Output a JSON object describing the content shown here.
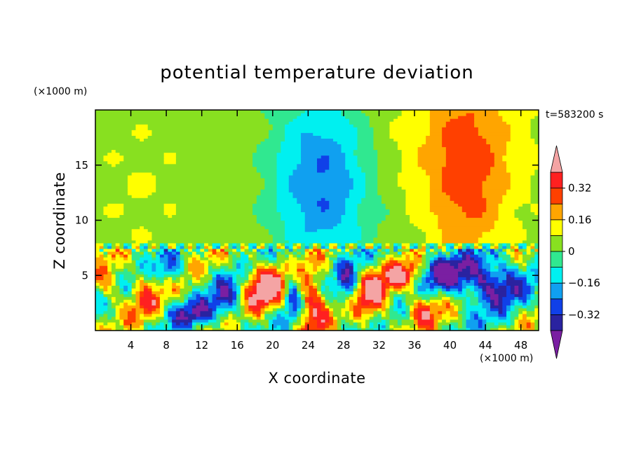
{
  "chart_data": {
    "type": "heatmap",
    "title": "potential temperature deviation",
    "xlabel": "X coordinate",
    "ylabel": "Z coordinate",
    "x_unit": "(×1000 m)",
    "y_unit": "(×1000 m)",
    "time_label": "t=583200 s",
    "xlim": [
      0,
      50
    ],
    "ylim": [
      0,
      20
    ],
    "x_ticks": [
      4,
      8,
      12,
      16,
      20,
      24,
      28,
      32,
      36,
      40,
      44,
      48
    ],
    "y_ticks": [
      5,
      10,
      15
    ],
    "colorbar": {
      "levels": [
        -0.4,
        -0.32,
        -0.24,
        -0.16,
        -0.08,
        0,
        0.08,
        0.16,
        0.24,
        0.32,
        0.4
      ],
      "colors": [
        "#7a1fa2",
        "#2a23a0",
        "#1040e8",
        "#10a0f0",
        "#00f0f0",
        "#30e890",
        "#88e020",
        "#ffff00",
        "#ffa500",
        "#ff4000",
        "#ff2020",
        "#f4a4a4"
      ],
      "tick_labels": [
        "0.32",
        "0.16",
        "0",
        "−0.16",
        "−0.32"
      ],
      "tick_values": [
        0.32,
        0.16,
        0,
        -0.16,
        -0.32
      ]
    },
    "upper_field": {
      "description_values": "upper layer (z 7.7–20 km): background ~0.05, cold tongue centered x≈25 (min ~−0.26), warm column centered x≈42 (max ~+0.23)",
      "background": 0.05,
      "features": [
        {
          "x": 25.5,
          "z": 13.5,
          "amplitude": -0.3,
          "sx": 5.5,
          "sz": 8.0
        },
        {
          "x": 42,
          "z": 14,
          "amplitude": 0.2,
          "sx": 4.5,
          "sz": 9.0
        },
        {
          "x": 40,
          "z": 17,
          "amplitude": 0.07,
          "sx": 9.0,
          "sz": 6.0
        },
        {
          "x": 5,
          "z": 13,
          "amplitude": 0.03,
          "sx": 4.0,
          "sz": 6.0
        }
      ]
    },
    "lower_field": {
      "description_values": "lower layer (z 0–7.7 km): strong wave-like perturbations, amplitude up to about ±0.4",
      "amplitude_range": [
        -0.42,
        0.42
      ],
      "features": [
        {
          "x": 19,
          "z": 4.0,
          "amplitude": 0.45,
          "sx": 2.6,
          "sz": 2.2
        },
        {
          "x": 24.5,
          "z": 2.5,
          "amplitude": 0.42,
          "sx": 1.6,
          "sz": 2.8
        },
        {
          "x": 31,
          "z": 3.0,
          "amplitude": 0.35,
          "sx": 2.2,
          "sz": 2.5
        },
        {
          "x": 35,
          "z": 5.0,
          "amplitude": 0.38,
          "sx": 2.5,
          "sz": 1.3
        },
        {
          "x": 37,
          "z": 2.0,
          "amplitude": 0.3,
          "sx": 1.8,
          "sz": 1.5
        },
        {
          "x": 44.5,
          "z": 4.5,
          "amplitude": -0.46,
          "sx": 3.5,
          "sz": 2.2
        },
        {
          "x": 39,
          "z": 5.2,
          "amplitude": -0.38,
          "sx": 3.0,
          "sz": 1.6
        },
        {
          "x": 28.5,
          "z": 4.0,
          "amplitude": -0.3,
          "sx": 1.3,
          "sz": 2.5
        },
        {
          "x": 22.2,
          "z": 3.5,
          "amplitude": -0.3,
          "sx": 1.0,
          "sz": 2.5
        },
        {
          "x": 15,
          "z": 3.0,
          "amplitude": -0.3,
          "sx": 2.0,
          "sz": 2.0
        },
        {
          "x": 11,
          "z": 1.5,
          "amplitude": -0.3,
          "sx": 2.5,
          "sz": 1.2
        },
        {
          "x": 5.5,
          "z": 3.2,
          "amplitude": 0.22,
          "sx": 1.8,
          "sz": 2.5
        },
        {
          "x": 1.5,
          "z": 4.0,
          "amplitude": 0.2,
          "sx": 1.5,
          "sz": 2.0
        },
        {
          "x": 8.5,
          "z": 5.5,
          "amplitude": -0.25,
          "sx": 1.5,
          "sz": 1.2
        }
      ]
    },
    "interface": {
      "z": 7.7,
      "description": "thin banded warm/cold layer along the interface near z≈7.7 km"
    }
  }
}
